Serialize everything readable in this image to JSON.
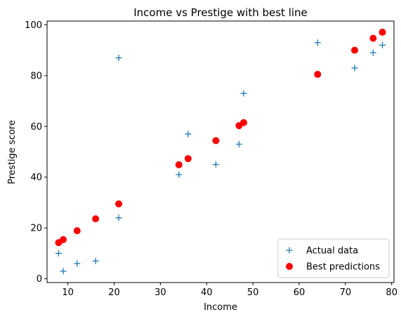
{
  "chart_data": {
    "type": "scatter",
    "title": "Income vs Prestige with best line",
    "xlabel": "Income",
    "ylabel": "Prestige score",
    "xlim": [
      5.5,
      80.5
    ],
    "ylim": [
      -1.5,
      101.5
    ],
    "xticks": [
      10,
      20,
      30,
      40,
      50,
      60,
      70,
      80
    ],
    "yticks": [
      0,
      20,
      40,
      60,
      80,
      100
    ],
    "grid": false,
    "legend_position": "lower right",
    "series": [
      {
        "name": "Actual data",
        "marker": "plus",
        "color": "#1f77b4",
        "x": [
          8,
          9,
          12,
          16,
          21,
          21,
          34,
          36,
          42,
          47,
          48,
          64,
          72,
          76,
          78
        ],
        "y": [
          10,
          3,
          6,
          7,
          87,
          24,
          41,
          57,
          45,
          53,
          73,
          93,
          83,
          89,
          92
        ]
      },
      {
        "name": "Best predictions",
        "marker": "circle",
        "color": "#ff0000",
        "x": [
          8,
          9,
          12,
          16,
          21,
          34,
          36,
          42,
          47,
          48,
          64,
          72,
          76,
          78
        ],
        "y": [
          14.2,
          15.4,
          18.9,
          23.6,
          29.5,
          44.9,
          47.3,
          54.4,
          60.3,
          61.5,
          80.5,
          90.0,
          94.7,
          97.1
        ]
      }
    ]
  }
}
